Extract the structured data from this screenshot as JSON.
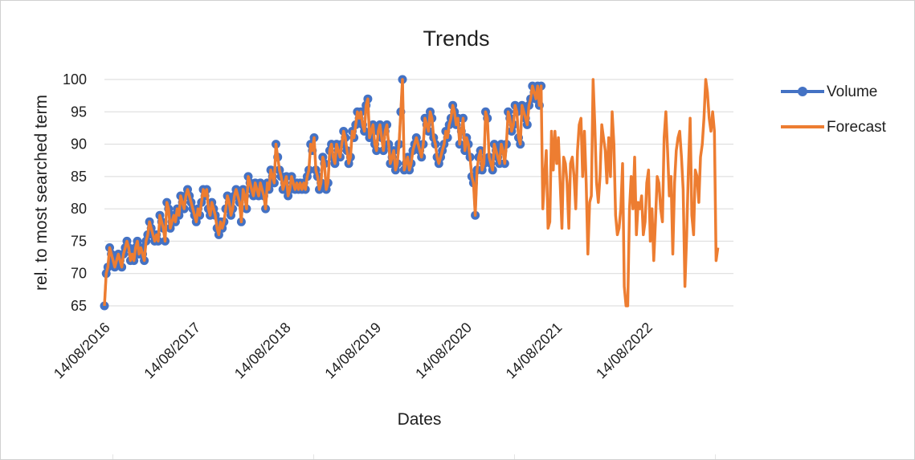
{
  "chart_data": {
    "type": "line",
    "title": "Trends",
    "xlabel": "Dates",
    "ylabel": "rel. to most searched term",
    "x_tick_labels": [
      "14/08/2016",
      "14/08/2017",
      "14/08/2018",
      "14/08/2019",
      "14/08/2020",
      "14/08/2021",
      "14/08/2022"
    ],
    "x_range": [
      "2016-08-14",
      "2023-07-30"
    ],
    "ylim": [
      65,
      100
    ],
    "y_ticks": [
      65,
      70,
      75,
      80,
      85,
      90,
      95,
      100
    ],
    "grid": "horizontal",
    "legend_position": "right",
    "series": [
      {
        "name": "Volume",
        "color": "#4472C4",
        "marker": "circle",
        "x_start": "2016-08-14",
        "x_step_days": 7,
        "values": [
          65,
          70,
          71,
          74,
          73,
          72,
          71,
          72,
          73,
          72,
          71,
          73,
          74,
          75,
          74,
          72,
          73,
          72,
          74,
          75,
          73,
          74,
          73,
          72,
          75,
          76,
          78,
          77,
          76,
          75,
          76,
          75,
          79,
          78,
          77,
          75,
          81,
          80,
          77,
          78,
          79,
          78,
          80,
          79,
          82,
          81,
          80,
          82,
          83,
          82,
          81,
          80,
          79,
          78,
          80,
          79,
          81,
          83,
          82,
          83,
          80,
          79,
          81,
          80,
          79,
          77,
          76,
          78,
          77,
          78,
          80,
          82,
          81,
          79,
          80,
          82,
          83,
          82,
          81,
          78,
          83,
          82,
          80,
          85,
          84,
          83,
          82,
          84,
          83,
          82,
          84,
          83,
          82,
          80,
          84,
          83,
          86,
          85,
          84,
          90,
          88,
          86,
          85,
          83,
          84,
          85,
          82,
          83,
          85,
          84,
          83,
          84,
          83,
          84,
          83,
          84,
          83,
          85,
          86,
          90,
          89,
          91,
          86,
          85,
          83,
          84,
          88,
          87,
          83,
          84,
          89,
          90,
          88,
          87,
          90,
          89,
          88,
          90,
          92,
          91,
          89,
          87,
          88,
          92,
          91,
          93,
          95,
          94,
          95,
          93,
          92,
          96,
          97,
          91,
          92,
          93,
          90,
          89,
          92,
          93,
          91,
          89,
          92,
          93,
          90,
          87,
          88,
          89,
          86,
          87,
          90,
          95,
          100,
          86,
          87,
          88,
          86,
          87,
          89,
          90,
          91,
          90,
          89,
          88,
          90,
          94,
          93,
          92,
          95,
          94,
          91,
          90,
          88,
          87,
          88,
          89,
          90,
          92,
          91,
          93,
          94,
          96,
          95,
          93,
          94,
          90,
          92,
          94,
          89,
          91,
          90,
          88,
          85,
          84,
          79,
          86,
          88,
          89,
          86,
          87,
          95,
          94,
          88,
          87,
          86,
          90,
          89,
          88,
          87,
          90,
          89,
          87,
          90,
          95,
          94,
          92,
          93,
          96,
          95,
          91,
          90,
          96,
          95,
          94,
          93,
          96,
          97,
          99,
          98,
          97,
          99,
          96,
          99
        ]
      },
      {
        "name": "Forecast",
        "color": "#ED7D31",
        "marker": "none",
        "x_start": "2016-08-14",
        "x_step_days": 7,
        "values": [
          65,
          70,
          71,
          74,
          73,
          72,
          71,
          72,
          73,
          72,
          71,
          73,
          74,
          75,
          74,
          72,
          73,
          72,
          74,
          75,
          73,
          74,
          73,
          72,
          75,
          76,
          78,
          77,
          76,
          75,
          76,
          75,
          79,
          78,
          77,
          75,
          81,
          80,
          77,
          78,
          79,
          78,
          80,
          79,
          82,
          81,
          80,
          82,
          83,
          82,
          81,
          80,
          79,
          78,
          80,
          79,
          81,
          83,
          82,
          83,
          80,
          79,
          81,
          80,
          79,
          77,
          76,
          78,
          77,
          78,
          80,
          82,
          81,
          79,
          80,
          82,
          83,
          82,
          81,
          78,
          83,
          82,
          80,
          85,
          84,
          83,
          82,
          84,
          83,
          82,
          84,
          83,
          82,
          80,
          84,
          83,
          86,
          85,
          84,
          90,
          88,
          86,
          85,
          83,
          84,
          85,
          82,
          83,
          85,
          84,
          83,
          84,
          83,
          84,
          83,
          84,
          83,
          85,
          86,
          90,
          89,
          91,
          86,
          85,
          83,
          84,
          88,
          87,
          83,
          84,
          89,
          90,
          88,
          87,
          90,
          89,
          88,
          90,
          92,
          91,
          89,
          87,
          88,
          92,
          91,
          93,
          95,
          94,
          95,
          93,
          92,
          96,
          97,
          91,
          92,
          93,
          90,
          89,
          92,
          93,
          91,
          89,
          92,
          93,
          90,
          87,
          88,
          89,
          86,
          87,
          90,
          95,
          100,
          86,
          87,
          88,
          86,
          87,
          89,
          90,
          91,
          90,
          89,
          88,
          90,
          94,
          93,
          92,
          95,
          94,
          91,
          90,
          88,
          87,
          88,
          89,
          90,
          92,
          91,
          93,
          94,
          96,
          95,
          93,
          94,
          90,
          92,
          94,
          89,
          91,
          90,
          88,
          85,
          84,
          79,
          86,
          88,
          89,
          86,
          87,
          95,
          94,
          88,
          87,
          86,
          90,
          89,
          88,
          87,
          90,
          89,
          87,
          90,
          95,
          94,
          92,
          93,
          96,
          95,
          91,
          90,
          96,
          95,
          94,
          93,
          96,
          97,
          99,
          98,
          97,
          99,
          96,
          99,
          80,
          85,
          89,
          77,
          78,
          92,
          86,
          92,
          87,
          91,
          84,
          77,
          88,
          87,
          84,
          77,
          87,
          88,
          85,
          80,
          89,
          93,
          94,
          85,
          92,
          84,
          73,
          81,
          82,
          100,
          93,
          84,
          81,
          85,
          93,
          91,
          89,
          84,
          91,
          85,
          95,
          90,
          79,
          76,
          77,
          80,
          87,
          68,
          65,
          65,
          80,
          85,
          80,
          88,
          76,
          81,
          80,
          82,
          76,
          78,
          84,
          86,
          75,
          80,
          72,
          78,
          85,
          84,
          80,
          78,
          91,
          95,
          89,
          82,
          85,
          73,
          84,
          89,
          91,
          92,
          88,
          83,
          68,
          76,
          86,
          94,
          79,
          76,
          86,
          85,
          81,
          88,
          90,
          94,
          100,
          98,
          94,
          92,
          95,
          92,
          72,
          74
        ]
      }
    ]
  }
}
